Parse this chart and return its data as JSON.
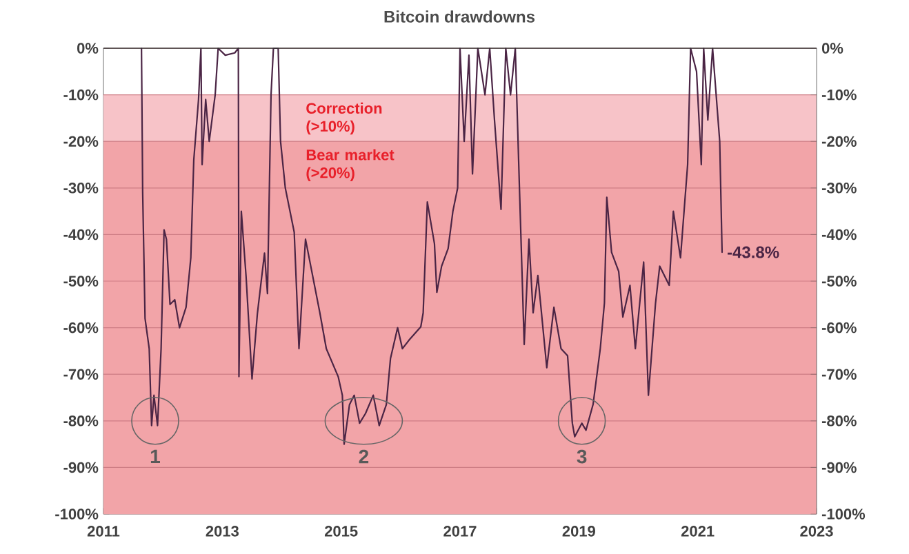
{
  "chart_data": {
    "type": "line",
    "title": "Bitcoin drawdowns",
    "x": [
      2011.64,
      2011.66,
      2011.7,
      2011.77,
      2011.81,
      2011.85,
      2011.91,
      2011.97,
      2012.02,
      2012.06,
      2012.12,
      2012.2,
      2012.28,
      2012.39,
      2012.47,
      2012.52,
      2012.6,
      2012.64,
      2012.66,
      2012.72,
      2012.78,
      2012.88,
      2012.93,
      2013.05,
      2013.21,
      2013.27,
      2013.28,
      2013.32,
      2013.4,
      2013.5,
      2013.59,
      2013.71,
      2013.76,
      2013.82,
      2013.86,
      2013.94,
      2013.98,
      2014.06,
      2014.21,
      2014.29,
      2014.4,
      2014.64,
      2014.75,
      2014.95,
      2015.02,
      2015.05,
      2015.14,
      2015.22,
      2015.31,
      2015.41,
      2015.54,
      2015.64,
      2015.76,
      2015.83,
      2015.95,
      2016.03,
      2016.14,
      2016.34,
      2016.38,
      2016.45,
      2016.57,
      2016.61,
      2016.69,
      2016.8,
      2016.88,
      2016.96,
      2017.0,
      2017.07,
      2017.15,
      2017.21,
      2017.3,
      2017.42,
      2017.5,
      2017.58,
      2017.69,
      2017.77,
      2017.85,
      2017.93,
      2018.0,
      2018.08,
      2018.16,
      2018.23,
      2018.31,
      2018.46,
      2018.58,
      2018.7,
      2018.81,
      2018.89,
      2018.93,
      2019.05,
      2019.12,
      2019.24,
      2019.36,
      2019.43,
      2019.47,
      2019.55,
      2019.67,
      2019.74,
      2019.86,
      2019.95,
      2020.09,
      2020.17,
      2020.29,
      2020.36,
      2020.52,
      2020.59,
      2020.71,
      2020.83,
      2020.88,
      2020.98,
      2021.06,
      2021.1,
      2021.17,
      2021.25,
      2021.37,
      2021.41
    ],
    "series": [
      {
        "color": "#4b2545",
        "values": [
          0,
          -31,
          -58,
          -64.5,
          -81,
          -74.5,
          -81,
          -64.5,
          -39,
          -41,
          -55,
          -54,
          -60,
          -55.6,
          -45,
          -24,
          -11,
          0,
          -25,
          -11,
          -20,
          -10,
          0,
          -1.5,
          -1,
          0,
          -70.5,
          -35,
          -49,
          -71,
          -57,
          -44,
          -52.7,
          -10,
          0,
          0,
          -20,
          -30,
          -39.5,
          -64.5,
          -41,
          -56.7,
          -64.5,
          -70.5,
          -74.5,
          -85,
          -76.5,
          -74.5,
          -80.5,
          -78.4,
          -74.5,
          -81,
          -76.5,
          -66.6,
          -60,
          -64.5,
          -62.7,
          -59.8,
          -56.8,
          -33,
          -42,
          -52.4,
          -46.8,
          -43,
          -35,
          -30,
          0,
          -20,
          -1.5,
          -27,
          0,
          -10,
          0,
          -15.4,
          -34.6,
          0,
          -10,
          0,
          -30,
          -63.6,
          -41,
          -56.8,
          -48.8,
          -68.6,
          -55.6,
          -64.5,
          -66,
          -80.5,
          -83.4,
          -80.5,
          -82,
          -76.4,
          -64.5,
          -54.7,
          -32,
          -43.8,
          -47.9,
          -57.7,
          -50.9,
          -64.5,
          -45.9,
          -74.5,
          -54.7,
          -46.8,
          -50.9,
          -35,
          -45,
          -25,
          0,
          -5,
          -25,
          0,
          -15.4,
          0,
          -20,
          -43.8
        ]
      }
    ],
    "xlim": [
      2011,
      2023
    ],
    "xticks": [
      2011,
      2013,
      2015,
      2017,
      2019,
      2021,
      2023
    ],
    "ylim": [
      -100,
      0
    ],
    "yticks": [
      {
        "value": 0,
        "label": "0%"
      },
      {
        "value": -10,
        "label": "-10%"
      },
      {
        "value": -20,
        "label": "-20%"
      },
      {
        "value": -30,
        "label": "-30%"
      },
      {
        "value": -40,
        "label": "-40%"
      },
      {
        "value": -50,
        "label": "-50%"
      },
      {
        "value": -60,
        "label": "-60%"
      },
      {
        "value": -70,
        "label": "-70%"
      },
      {
        "value": -80,
        "label": "-80%"
      },
      {
        "value": -90,
        "label": "-90%"
      },
      {
        "value": -100,
        "label": "-100%"
      }
    ],
    "y2lim": [
      -100,
      0
    ],
    "y2ticks": [
      {
        "value": 0,
        "label": "0%"
      },
      {
        "value": -10,
        "label": "-10%"
      },
      {
        "value": -20,
        "label": "-20%"
      },
      {
        "value": -30,
        "label": "-30%"
      },
      {
        "value": -40,
        "label": "-40%"
      },
      {
        "value": -50,
        "label": "-50%"
      },
      {
        "value": -60,
        "label": "-60%"
      },
      {
        "value": -70,
        "label": "-70%"
      },
      {
        "value": -80,
        "label": "-80%"
      },
      {
        "value": -90,
        "label": "-90%"
      },
      {
        "value": -100,
        "label": "-100%"
      }
    ],
    "bands": [
      {
        "axis": "y",
        "from": -10,
        "to": -20,
        "label": "Correction (>10%)",
        "color": "#f7c3c8"
      },
      {
        "axis": "y",
        "from": -20,
        "to": -100,
        "label": "Bear market (>20%)",
        "color": "#f2a4a8"
      }
    ],
    "annotations": [
      {
        "text": "1",
        "x": 2011.87,
        "y": -80
      },
      {
        "text": "2",
        "x": 2015.38,
        "y": -80
      },
      {
        "text": "3",
        "x": 2019.05,
        "y": -80
      },
      {
        "text": "-43.8%",
        "x": 2021.41,
        "y": -43.8
      }
    ],
    "grid": "y",
    "marker": "none",
    "line_style": "solid"
  }
}
